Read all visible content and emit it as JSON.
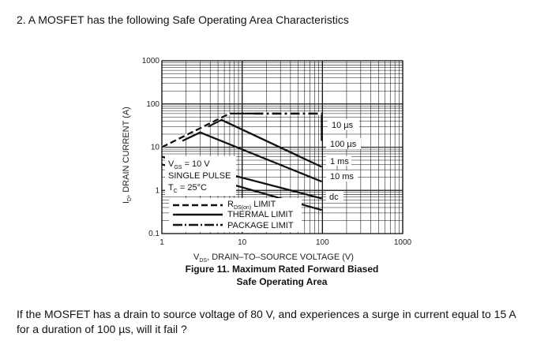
{
  "question": {
    "heading": "2. A MOSFET has the following Safe Operating Area Characteristics",
    "prompt": "If the MOSFET has a drain to source voltage of 80 V, and experiences a surge in current equal to 15 A for a duration of 100 µs, will it fail ?"
  },
  "chart_data": {
    "type": "line",
    "title": "Figure 11. Maximum Rated Forward Biased Safe Operating Area",
    "title_lines": [
      "Figure 11. Maximum Rated Forward Biased",
      "Safe Operating Area"
    ],
    "xlabel": {
      "sym": "V",
      "sub": "DS",
      "text": ", DRAIN–TO–SOURCE VOLTAGE (V)"
    },
    "ylabel": {
      "sym": "I",
      "sub": "D",
      "text": ", DRAIN CURRENT (A)"
    },
    "x_scale": "log",
    "y_scale": "log",
    "xlim": [
      1,
      1000
    ],
    "ylim": [
      0.1,
      1000
    ],
    "x_ticks": [
      1,
      10,
      100,
      1000
    ],
    "x_tick_labels": [
      "1",
      "10",
      "100",
      "1000"
    ],
    "y_ticks": [
      0.1,
      1,
      10,
      100,
      1000
    ],
    "y_tick_labels": [
      "0.1",
      "1",
      "10",
      "100",
      "1000"
    ],
    "grid": true,
    "conditions": {
      "vgs": {
        "sym": "V",
        "sub": "GS",
        "text": " = 10 V"
      },
      "pulse": "SINGLE PULSE",
      "tc": {
        "sym": "T",
        "sub": "C",
        "text": " = 25°C"
      }
    },
    "legend": {
      "placement": "bottom-center",
      "entries": [
        {
          "style": "dashed",
          "sym": "R",
          "sub": "DS(on)",
          "text": " LIMIT"
        },
        {
          "style": "solid",
          "text": "THERMAL LIMIT"
        },
        {
          "style": "dashdot",
          "text": "PACKAGE LIMIT"
        }
      ]
    },
    "series": [
      {
        "name": "10 µs",
        "points": [
          [
            1,
            10
          ],
          [
            7,
            60
          ],
          [
            98,
            60
          ],
          [
            98,
            14
          ]
        ]
      },
      {
        "name": "100 µs",
        "points": [
          [
            3.8,
            30
          ],
          [
            5.5,
            43
          ],
          [
            98,
            3.5
          ]
        ]
      },
      {
        "name": "1 ms",
        "points": [
          [
            1.8,
            14
          ],
          [
            3,
            22
          ],
          [
            98,
            1.6
          ]
        ]
      },
      {
        "name": "10 ms",
        "points": [
          [
            1,
            6
          ],
          [
            98,
            0.65
          ]
        ]
      },
      {
        "name": "dc",
        "points": [
          [
            1,
            4
          ],
          [
            98,
            0.35
          ]
        ]
      }
    ],
    "rds_on_limit": [
      [
        1,
        10
      ],
      [
        7,
        60
      ]
    ],
    "package_limit": [
      [
        14,
        60
      ],
      [
        98,
        60
      ]
    ],
    "curve_labels": [
      "10 µs",
      "100 µs",
      "1 ms",
      "10 ms",
      "dc"
    ]
  }
}
